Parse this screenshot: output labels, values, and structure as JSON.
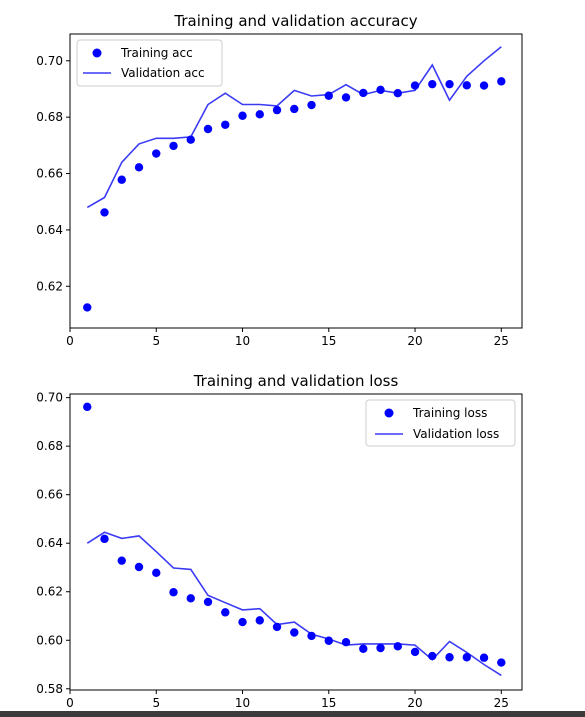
{
  "chart_data": [
    {
      "type": "line",
      "title": "Training and validation accuracy",
      "xlabel": "",
      "ylabel": "",
      "xlim": [
        0,
        26.2
      ],
      "ylim": [
        0.6052,
        0.7095
      ],
      "xticks": [
        0,
        5,
        10,
        15,
        20,
        25
      ],
      "yticks": [
        0.62,
        0.64,
        0.66,
        0.68,
        0.7
      ],
      "ytick_labels": [
        "0.62",
        "0.64",
        "0.66",
        "0.68",
        "0.70"
      ],
      "grid": false,
      "legend_position": "top-left",
      "x": [
        1,
        2,
        3,
        4,
        5,
        6,
        7,
        8,
        9,
        10,
        11,
        12,
        13,
        14,
        15,
        16,
        17,
        18,
        19,
        20,
        21,
        22,
        23,
        24,
        25
      ],
      "series": [
        {
          "name": "Training acc",
          "style": "dots",
          "color": "#0000ff",
          "values": [
            0.6125,
            0.6462,
            0.6578,
            0.6622,
            0.6671,
            0.6698,
            0.672,
            0.6758,
            0.6773,
            0.6805,
            0.681,
            0.6825,
            0.6829,
            0.6843,
            0.6876,
            0.687,
            0.6886,
            0.6897,
            0.6885,
            0.6912,
            0.6917,
            0.6917,
            0.6913,
            0.6912,
            0.6927
          ]
        },
        {
          "name": "Validation acc",
          "style": "line",
          "color": "#3b3bf5",
          "values": [
            0.648,
            0.6515,
            0.664,
            0.6705,
            0.6725,
            0.6725,
            0.673,
            0.6845,
            0.6885,
            0.6845,
            0.6845,
            0.684,
            0.6895,
            0.6875,
            0.688,
            0.6915,
            0.688,
            0.6895,
            0.6885,
            0.6895,
            0.6985,
            0.686,
            0.6945,
            0.7,
            0.705
          ]
        }
      ]
    },
    {
      "type": "line",
      "title": "Training and validation loss",
      "xlabel": "",
      "ylabel": "",
      "xlim": [
        0,
        26.2
      ],
      "ylim": [
        0.5795,
        0.7015
      ],
      "xticks": [
        0,
        5,
        10,
        15,
        20,
        25
      ],
      "yticks": [
        0.58,
        0.6,
        0.62,
        0.64,
        0.66,
        0.68,
        0.7
      ],
      "ytick_labels": [
        "0.58",
        "0.60",
        "0.62",
        "0.64",
        "0.66",
        "0.68",
        "0.70"
      ],
      "grid": false,
      "legend_position": "top-right",
      "x": [
        1,
        2,
        3,
        4,
        5,
        6,
        7,
        8,
        9,
        10,
        11,
        12,
        13,
        14,
        15,
        16,
        17,
        18,
        19,
        20,
        21,
        22,
        23,
        24,
        25
      ],
      "series": [
        {
          "name": "Training loss",
          "style": "dots",
          "color": "#0000ff",
          "values": [
            0.6962,
            0.6418,
            0.6328,
            0.6302,
            0.6278,
            0.6198,
            0.6173,
            0.6158,
            0.6115,
            0.6075,
            0.6082,
            0.6055,
            0.6032,
            0.6018,
            0.5998,
            0.5992,
            0.5965,
            0.5968,
            0.5975,
            0.5952,
            0.5935,
            0.593,
            0.593,
            0.5928,
            0.5908
          ]
        },
        {
          "name": "Validation loss",
          "style": "line",
          "color": "#3b3bf5",
          "values": [
            0.64,
            0.6445,
            0.642,
            0.643,
            0.6365,
            0.6298,
            0.6292,
            0.6185,
            0.6155,
            0.6125,
            0.613,
            0.6065,
            0.6075,
            0.6025,
            0.6005,
            0.598,
            0.5985,
            0.5985,
            0.5985,
            0.598,
            0.592,
            0.5995,
            0.595,
            0.59,
            0.5855
          ]
        }
      ]
    }
  ]
}
